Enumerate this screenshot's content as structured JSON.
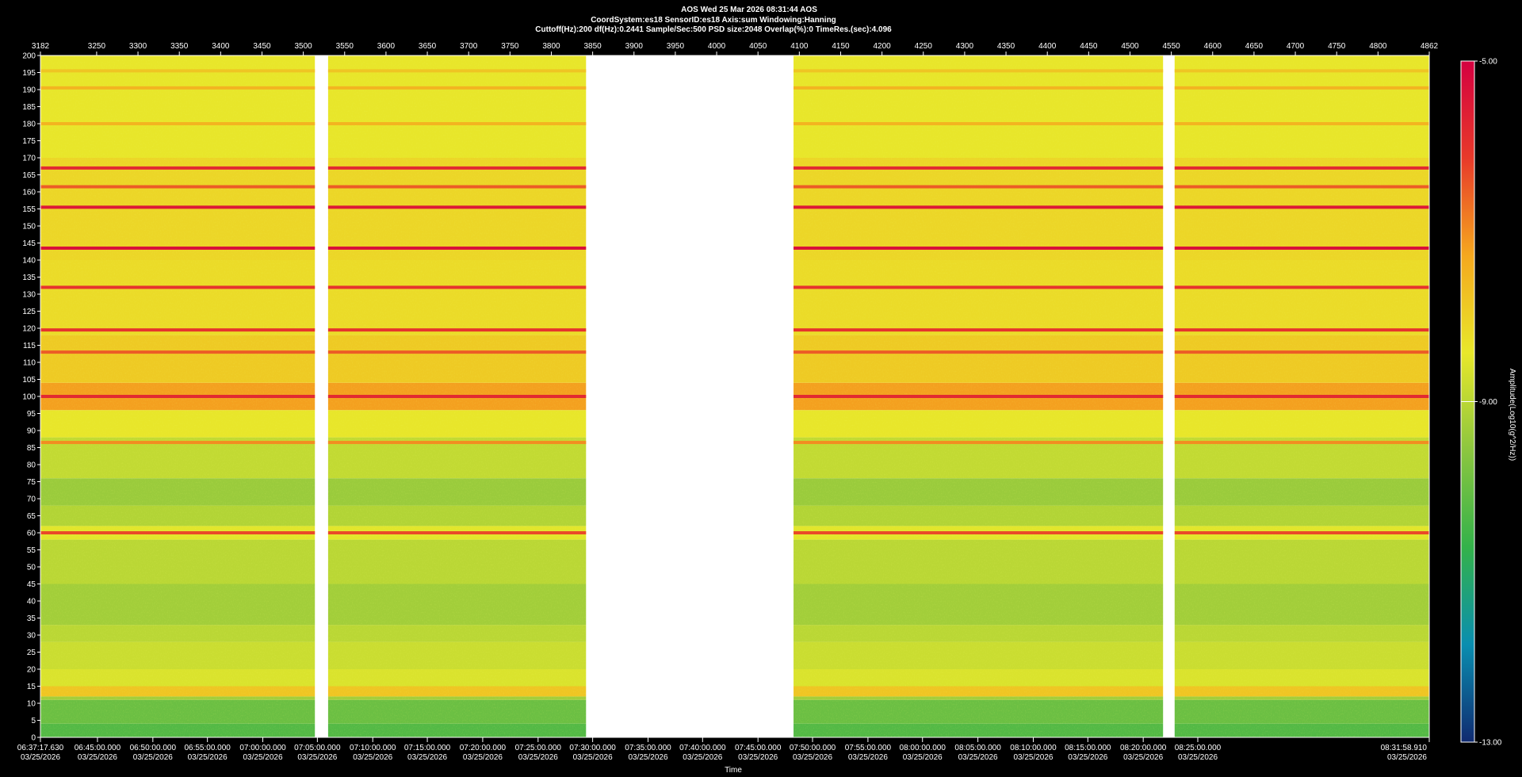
{
  "header": {
    "line1": "AOS   Wed 25 Mar 2026 08:31:44  AOS",
    "line2": "CoordSystem:es18    SensorID:es18    Axis:sum    Windowing:Hanning",
    "line3": "Cuttoff(Hz):200       df(Hz):0.2441        Sample/Sec:500        PSD size:2048        Overlap(%):0           TimeRes.(sec):4.096"
  },
  "chart_data": {
    "type": "heatmap",
    "top_axis_ticks": [
      3182,
      3250,
      3300,
      3350,
      3400,
      3450,
      3500,
      3550,
      3600,
      3650,
      3700,
      3750,
      3800,
      3850,
      3900,
      3950,
      4000,
      4050,
      4100,
      4150,
      4200,
      4250,
      4300,
      4350,
      4400,
      4450,
      4500,
      4550,
      4600,
      4650,
      4700,
      4750,
      4800,
      4862
    ],
    "xlim": [
      3182,
      4862
    ],
    "ylim": [
      0,
      200
    ],
    "y_ticks": [
      0,
      5,
      10,
      15,
      20,
      25,
      30,
      35,
      40,
      45,
      50,
      55,
      60,
      65,
      70,
      75,
      80,
      85,
      90,
      95,
      100,
      105,
      110,
      115,
      120,
      125,
      130,
      135,
      140,
      145,
      150,
      155,
      160,
      165,
      170,
      175,
      180,
      185,
      190,
      195,
      200
    ],
    "time_ticks": [
      {
        "index": 3182,
        "time": "06:37:17.630",
        "date": "03/25/2026"
      },
      {
        "index": 3251,
        "time": "06:45:00.000",
        "date": "03/25/2026"
      },
      {
        "index": 3318,
        "time": "06:50:00.000",
        "date": "03/25/2026"
      },
      {
        "index": 3384,
        "time": "06:55:00.000",
        "date": "03/25/2026"
      },
      {
        "index": 3451,
        "time": "07:00:00.000",
        "date": "03/25/2026"
      },
      {
        "index": 3517,
        "time": "07:05:00.000",
        "date": "03/25/2026"
      },
      {
        "index": 3584,
        "time": "07:10:00.000",
        "date": "03/25/2026"
      },
      {
        "index": 3650,
        "time": "07:15:00.000",
        "date": "03/25/2026"
      },
      {
        "index": 3717,
        "time": "07:20:00.000",
        "date": "03/25/2026"
      },
      {
        "index": 3784,
        "time": "07:25:00.000",
        "date": "03/25/2026"
      },
      {
        "index": 3850,
        "time": "07:30:00.000",
        "date": "03/25/2026"
      },
      {
        "index": 3917,
        "time": "07:35:00.000",
        "date": "03/25/2026"
      },
      {
        "index": 3983,
        "time": "07:40:00.000",
        "date": "03/25/2026"
      },
      {
        "index": 4050,
        "time": "07:45:00.000",
        "date": "03/25/2026"
      },
      {
        "index": 4116,
        "time": "07:50:00.000",
        "date": "03/25/2026"
      },
      {
        "index": 4183,
        "time": "07:55:00.000",
        "date": "03/25/2026"
      },
      {
        "index": 4249,
        "time": "08:00:00.000",
        "date": "03/25/2026"
      },
      {
        "index": 4316,
        "time": "08:05:00.000",
        "date": "03/25/2026"
      },
      {
        "index": 4383,
        "time": "08:10:00.000",
        "date": "03/25/2026"
      },
      {
        "index": 4449,
        "time": "08:15:00.000",
        "date": "03/25/2026"
      },
      {
        "index": 4516,
        "time": "08:20:00.000",
        "date": "03/25/2026"
      },
      {
        "index": 4582,
        "time": "08:25:00.000",
        "date": "03/25/2026"
      },
      {
        "index": 4862,
        "time": "08:31:58.910",
        "date": "03/25/2026"
      }
    ],
    "xlabel": "Time",
    "colorbar": {
      "label": "Amplitude(Log10(g^2/Hz))",
      "ticks": [
        "-5.00",
        "-9.00",
        "-13.00"
      ],
      "range": [
        -13,
        -5
      ],
      "colors": [
        "#102a70",
        "#0a8eb0",
        "#33b24a",
        "#8cc63f",
        "#e8e82a",
        "#f5a81e",
        "#e83a2a",
        "#d40040"
      ]
    },
    "data_segments": [
      {
        "start": 3182,
        "end": 3514
      },
      {
        "start": 3530,
        "end": 3842
      },
      {
        "start": 4093,
        "end": 4540
      },
      {
        "start": 4554,
        "end": 4862
      }
    ],
    "gaps": [
      {
        "start": 3514,
        "end": 3530
      },
      {
        "start": 3842,
        "end": 4093
      },
      {
        "start": 4540,
        "end": 4554
      }
    ],
    "bands": [
      {
        "range": [
          0,
          4
        ],
        "level": -10.3
      },
      {
        "range": [
          4,
          11
        ],
        "level": -10.0
      },
      {
        "range": [
          11,
          12
        ],
        "level": -9.3
      },
      {
        "range": [
          12,
          15
        ],
        "level": -7.8
      },
      {
        "range": [
          15,
          20
        ],
        "level": -8.6
      },
      {
        "range": [
          20,
          28
        ],
        "level": -8.8
      },
      {
        "range": [
          28,
          33
        ],
        "level": -9.0
      },
      {
        "range": [
          33,
          45
        ],
        "level": -9.3
      },
      {
        "range": [
          45,
          58
        ],
        "level": -9.0
      },
      {
        "range": [
          58,
          62
        ],
        "level": -8.5
      },
      {
        "range": [
          62,
          68
        ],
        "level": -9.1
      },
      {
        "range": [
          68,
          76
        ],
        "level": -9.4
      },
      {
        "range": [
          76,
          88
        ],
        "level": -8.9
      },
      {
        "range": [
          88,
          96
        ],
        "level": -8.4
      },
      {
        "range": [
          96,
          104
        ],
        "level": -7.2
      },
      {
        "range": [
          104,
          118
        ],
        "level": -7.9
      },
      {
        "range": [
          118,
          140
        ],
        "level": -8.2
      },
      {
        "range": [
          140,
          170
        ],
        "level": -8.1
      },
      {
        "range": [
          170,
          200
        ],
        "level": -8.4
      }
    ],
    "lines": [
      {
        "freq": 60,
        "level": -6.3
      },
      {
        "freq": 86.5,
        "level": -7.0
      },
      {
        "freq": 100,
        "level": -5.8
      },
      {
        "freq": 113,
        "level": -6.5
      },
      {
        "freq": 119.5,
        "level": -6.0
      },
      {
        "freq": 132,
        "level": -6.0
      },
      {
        "freq": 143.5,
        "level": -5.3
      },
      {
        "freq": 155.5,
        "level": -5.5
      },
      {
        "freq": 161.5,
        "level": -6.5
      },
      {
        "freq": 167,
        "level": -5.8
      },
      {
        "freq": 180,
        "level": -7.5
      },
      {
        "freq": 190.5,
        "level": -7.5
      },
      {
        "freq": 195.5,
        "level": -7.8
      }
    ]
  }
}
